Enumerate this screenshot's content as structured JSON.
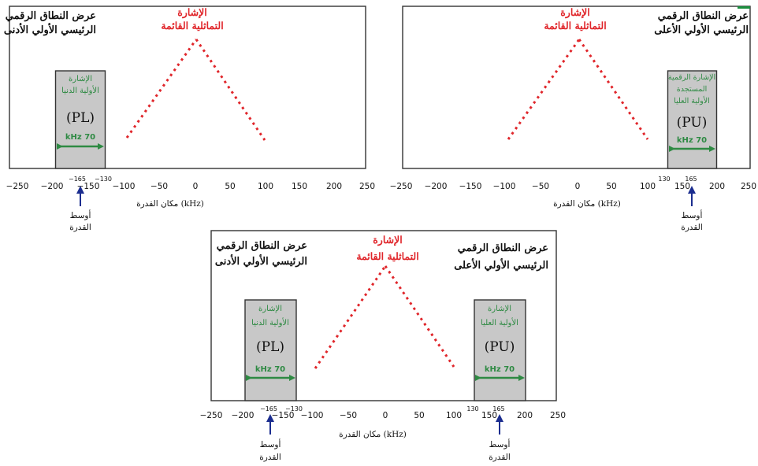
{
  "colors": {
    "signal": "#e0262b",
    "digital_band": "#2e8a43",
    "band_fill": "#c8c8c8",
    "arrow_blue": "#1b2d8f",
    "frame": "#333333",
    "corner_accent": "#1a8f3e"
  },
  "panels": [
    {
      "id": "lower",
      "title_lines": [
        "عرض النطاق الرقمي",
        "الرئيسي الأولي الأدنى"
      ],
      "analog_lines": [
        "الإشارة",
        "التماثلية القائمة"
      ],
      "band_lines": [
        "الإشارة",
        "الأولية الدنيا"
      ],
      "band_code": "(PL)",
      "band_width": "kHz 70",
      "band_ticks": [
        "−165",
        "−130"
      ],
      "x_ticks": [
        "−250",
        "−200",
        "−150",
        "−100",
        "−50",
        "0",
        "50",
        "100",
        "150",
        "200",
        "250"
      ],
      "x_axis_label": "مكان القدرة (kHz)",
      "center_lines": [
        "أوسط",
        "القدرة"
      ]
    },
    {
      "id": "upper",
      "title_lines": [
        "عرض النطاق الرقمي",
        "الرئيسي الأولي الأعلى"
      ],
      "analog_lines": [
        "الإشارة",
        "التماثلية القائمة"
      ],
      "band_lines": [
        "الإشارة الرقمية",
        "المستجدة",
        "الأولية العليا"
      ],
      "band_code": "(PU)",
      "band_width": "kHz 70",
      "band_ticks": [
        "130",
        "165"
      ],
      "x_ticks": [
        "−250",
        "−200",
        "−150",
        "−100",
        "−50",
        "0",
        "50",
        "100",
        "150",
        "200",
        "250"
      ],
      "x_axis_label": "مكان القدرة (kHz)",
      "center_lines": [
        "أوسط",
        "القدرة"
      ]
    },
    {
      "id": "both",
      "title_left_lines": [
        "عرض النطاق الرقمي",
        "الرئيسي الأولي الأدنى"
      ],
      "title_right_lines": [
        "عرض النطاق الرقمي",
        "الرئيسي الأولي الأعلى"
      ],
      "analog_lines": [
        "الإشارة",
        "التماثلية القائمة"
      ],
      "band_left_lines": [
        "الإشارة",
        "الأولية الدنيا"
      ],
      "band_left_code": "(PL)",
      "band_right_lines": [
        "الإشارة",
        "الأولية العليا"
      ],
      "band_right_code": "(PU)",
      "band_width": "kHz 70",
      "band_left_ticks": [
        "−165",
        "−130"
      ],
      "band_right_ticks": [
        "130",
        "165"
      ],
      "x_ticks": [
        "−250",
        "−200",
        "−150",
        "−100",
        "−50",
        "0",
        "50",
        "100",
        "150",
        "200",
        "250"
      ],
      "x_axis_label": "مكان القدرة (kHz)",
      "center_lines": [
        "أوسط",
        "القدرة"
      ]
    }
  ]
}
